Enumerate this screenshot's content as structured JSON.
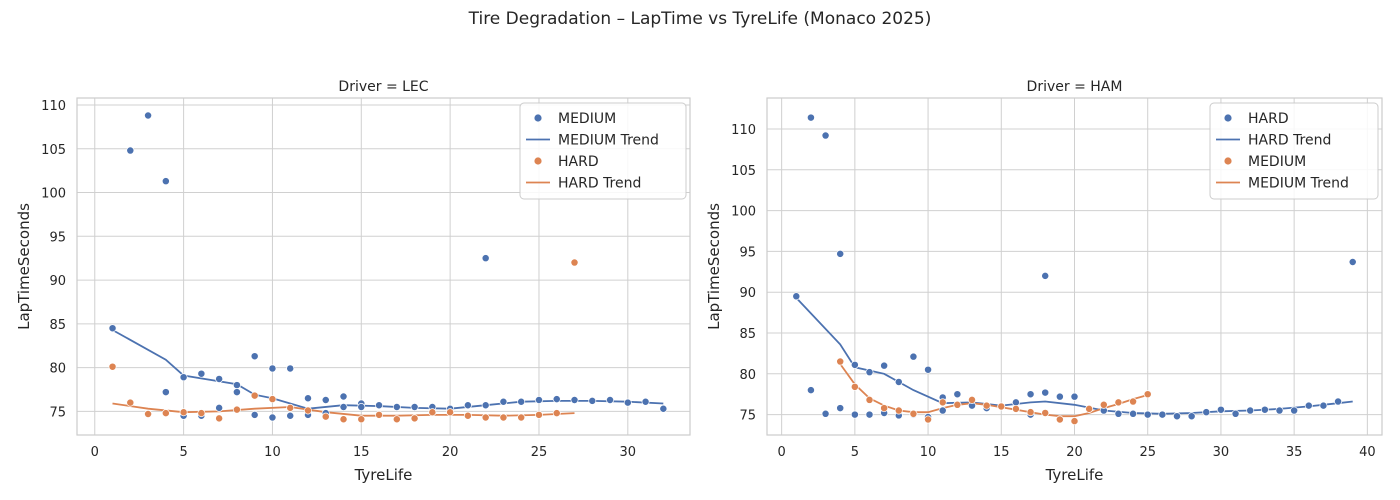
{
  "suptitle": "Tire Degradation – LapTime vs TyreLife (Monaco 2025)",
  "colors": {
    "HARD_LEC": "#dd8452",
    "MEDIUM_LEC": "#4c72b0",
    "HARD_HAM": "#4c72b0",
    "MEDIUM_HAM": "#dd8452",
    "grid": "#d0d0d0",
    "axis": "#cccccc"
  },
  "chart_data": [
    {
      "type": "scatter",
      "title": "Driver = LEC",
      "xlabel": "TyreLife",
      "ylabel": "LapTimeSeconds",
      "xlim": [
        -1,
        33.5
      ],
      "ylim": [
        72.3,
        110.8
      ],
      "xticks": [
        0,
        5,
        10,
        15,
        20,
        25,
        30
      ],
      "yticks": [
        75,
        80,
        85,
        90,
        95,
        100,
        105,
        110
      ],
      "grid": true,
      "legend_position": "top-right",
      "legend": [
        "MEDIUM",
        "MEDIUM Trend",
        "HARD",
        "HARD Trend"
      ],
      "series": [
        {
          "name": "MEDIUM",
          "kind": "points",
          "color": "#4c72b0",
          "points": [
            [
              1,
              84.5
            ],
            [
              2,
              104.8
            ],
            [
              3,
              108.8
            ],
            [
              4,
              101.3
            ],
            [
              4,
              77.2
            ],
            [
              5,
              78.9
            ],
            [
              5,
              74.5
            ],
            [
              6,
              79.3
            ],
            [
              6,
              74.5
            ],
            [
              7,
              78.7
            ],
            [
              7,
              75.4
            ],
            [
              8,
              78.0
            ],
            [
              8,
              77.2
            ],
            [
              9,
              81.3
            ],
            [
              9,
              74.6
            ],
            [
              10,
              79.9
            ],
            [
              10,
              74.3
            ],
            [
              11,
              79.9
            ],
            [
              11,
              74.5
            ],
            [
              12,
              76.5
            ],
            [
              12,
              74.6
            ],
            [
              13,
              76.3
            ],
            [
              13,
              74.8
            ],
            [
              14,
              76.7
            ],
            [
              14,
              75.5
            ],
            [
              15,
              75.9
            ],
            [
              15,
              75.5
            ],
            [
              16,
              75.7
            ],
            [
              17,
              75.5
            ],
            [
              18,
              75.5
            ],
            [
              19,
              75.5
            ],
            [
              20,
              75.3
            ],
            [
              21,
              75.7
            ],
            [
              22,
              92.5
            ],
            [
              22,
              75.7
            ],
            [
              23,
              76.1
            ],
            [
              24,
              76.1
            ],
            [
              25,
              76.3
            ],
            [
              26,
              76.4
            ],
            [
              27,
              76.3
            ],
            [
              28,
              76.2
            ],
            [
              29,
              76.3
            ],
            [
              30,
              76.0
            ],
            [
              31,
              76.1
            ],
            [
              32,
              75.3
            ]
          ]
        },
        {
          "name": "MEDIUM Trend",
          "kind": "line",
          "color": "#4c72b0",
          "points": [
            [
              1,
              84.3
            ],
            [
              4,
              80.9
            ],
            [
              5,
              79.1
            ],
            [
              8,
              78.1
            ],
            [
              9,
              76.9
            ],
            [
              10,
              76.5
            ],
            [
              12,
              75.3
            ],
            [
              14,
              75.7
            ],
            [
              16,
              75.6
            ],
            [
              18,
              75.4
            ],
            [
              20,
              75.3
            ],
            [
              22,
              75.7
            ],
            [
              24,
              76.1
            ],
            [
              26,
              76.2
            ],
            [
              28,
              76.2
            ],
            [
              30,
              76.1
            ],
            [
              32,
              75.9
            ]
          ]
        },
        {
          "name": "HARD",
          "kind": "points",
          "color": "#dd8452",
          "points": [
            [
              1,
              80.1
            ],
            [
              2,
              76.0
            ],
            [
              3,
              74.7
            ],
            [
              4,
              74.8
            ],
            [
              5,
              74.9
            ],
            [
              6,
              74.8
            ],
            [
              7,
              74.2
            ],
            [
              8,
              75.2
            ],
            [
              9,
              76.8
            ],
            [
              10,
              76.4
            ],
            [
              11,
              75.4
            ],
            [
              12,
              75.1
            ],
            [
              13,
              74.4
            ],
            [
              14,
              74.1
            ],
            [
              15,
              74.1
            ],
            [
              16,
              74.6
            ],
            [
              17,
              74.1
            ],
            [
              18,
              74.2
            ],
            [
              19,
              74.9
            ],
            [
              20,
              74.9
            ],
            [
              21,
              74.5
            ],
            [
              22,
              74.3
            ],
            [
              23,
              74.3
            ],
            [
              24,
              74.3
            ],
            [
              25,
              74.6
            ],
            [
              26,
              74.8
            ],
            [
              27,
              92.0
            ]
          ]
        },
        {
          "name": "HARD Trend",
          "kind": "line",
          "color": "#dd8452",
          "points": [
            [
              1,
              75.9
            ],
            [
              3,
              75.3
            ],
            [
              5,
              74.9
            ],
            [
              7,
              75.0
            ],
            [
              9,
              75.3
            ],
            [
              11,
              75.5
            ],
            [
              13,
              74.9
            ],
            [
              15,
              74.5
            ],
            [
              17,
              74.5
            ],
            [
              19,
              74.6
            ],
            [
              21,
              74.6
            ],
            [
              23,
              74.5
            ],
            [
              25,
              74.6
            ],
            [
              27,
              74.8
            ]
          ]
        }
      ]
    },
    {
      "type": "scatter",
      "title": "Driver = HAM",
      "xlabel": "TyreLife",
      "ylabel": "LapTimeSeconds",
      "xlim": [
        -1,
        41
      ],
      "ylim": [
        72.5,
        113.8
      ],
      "xticks": [
        0,
        5,
        10,
        15,
        20,
        25,
        30,
        35,
        40
      ],
      "yticks": [
        75,
        80,
        85,
        90,
        95,
        100,
        105,
        110
      ],
      "grid": true,
      "legend_position": "top-right",
      "legend": [
        "HARD",
        "HARD Trend",
        "MEDIUM",
        "MEDIUM Trend"
      ],
      "series": [
        {
          "name": "HARD",
          "kind": "points",
          "color": "#4c72b0",
          "points": [
            [
              1,
              89.5
            ],
            [
              2,
              111.4
            ],
            [
              2,
              78.0
            ],
            [
              3,
              109.2
            ],
            [
              3,
              75.1
            ],
            [
              4,
              94.7
            ],
            [
              4,
              75.8
            ],
            [
              5,
              81.1
            ],
            [
              5,
              75.0
            ],
            [
              6,
              80.2
            ],
            [
              6,
              75.0
            ],
            [
              7,
              81.0
            ],
            [
              7,
              75.2
            ],
            [
              8,
              79.0
            ],
            [
              8,
              74.9
            ],
            [
              9,
              82.1
            ],
            [
              9,
              75.0
            ],
            [
              10,
              80.5
            ],
            [
              10,
              74.7
            ],
            [
              11,
              77.1
            ],
            [
              11,
              75.5
            ],
            [
              12,
              77.5
            ],
            [
              12,
              76.2
            ],
            [
              13,
              76.1
            ],
            [
              14,
              75.8
            ],
            [
              15,
              76.0
            ],
            [
              16,
              76.5
            ],
            [
              17,
              77.5
            ],
            [
              17,
              75.0
            ],
            [
              18,
              92.0
            ],
            [
              18,
              77.7
            ],
            [
              19,
              77.2
            ],
            [
              20,
              77.2
            ],
            [
              21,
              75.7
            ],
            [
              22,
              75.5
            ],
            [
              23,
              75.1
            ],
            [
              24,
              75.1
            ],
            [
              25,
              75.0
            ],
            [
              26,
              75.0
            ],
            [
              27,
              74.8
            ],
            [
              28,
              74.8
            ],
            [
              29,
              75.3
            ],
            [
              30,
              75.6
            ],
            [
              31,
              75.1
            ],
            [
              32,
              75.5
            ],
            [
              33,
              75.6
            ],
            [
              34,
              75.5
            ],
            [
              35,
              75.5
            ],
            [
              36,
              76.1
            ],
            [
              37,
              76.1
            ],
            [
              38,
              76.6
            ],
            [
              39,
              93.7
            ]
          ]
        },
        {
          "name": "HARD Trend",
          "kind": "line",
          "color": "#4c72b0",
          "points": [
            [
              1,
              89.3
            ],
            [
              4,
              83.6
            ],
            [
              5,
              80.8
            ],
            [
              7,
              80.0
            ],
            [
              9,
              78.0
            ],
            [
              11,
              76.4
            ],
            [
              13,
              76.5
            ],
            [
              15,
              76.1
            ],
            [
              17,
              76.5
            ],
            [
              18,
              76.6
            ],
            [
              20,
              76.2
            ],
            [
              22,
              75.5
            ],
            [
              24,
              75.2
            ],
            [
              26,
              75.1
            ],
            [
              28,
              75.2
            ],
            [
              30,
              75.4
            ],
            [
              32,
              75.5
            ],
            [
              34,
              75.7
            ],
            [
              36,
              76.0
            ],
            [
              38,
              76.4
            ],
            [
              39,
              76.6
            ]
          ]
        },
        {
          "name": "MEDIUM",
          "kind": "points",
          "color": "#dd8452",
          "points": [
            [
              4,
              81.5
            ],
            [
              5,
              78.4
            ],
            [
              6,
              76.8
            ],
            [
              7,
              75.8
            ],
            [
              8,
              75.5
            ],
            [
              9,
              75.1
            ],
            [
              10,
              74.4
            ],
            [
              11,
              76.5
            ],
            [
              12,
              76.2
            ],
            [
              13,
              76.8
            ],
            [
              14,
              76.1
            ],
            [
              15,
              76.0
            ],
            [
              16,
              75.7
            ],
            [
              17,
              75.3
            ],
            [
              18,
              75.2
            ],
            [
              19,
              74.4
            ],
            [
              20,
              74.2
            ],
            [
              21,
              75.7
            ],
            [
              22,
              76.2
            ],
            [
              23,
              76.5
            ],
            [
              24,
              76.6
            ],
            [
              25,
              77.5
            ]
          ]
        },
        {
          "name": "MEDIUM Trend",
          "kind": "line",
          "color": "#dd8452",
          "points": [
            [
              4,
              81.2
            ],
            [
              5,
              78.7
            ],
            [
              6,
              77.0
            ],
            [
              7,
              76.1
            ],
            [
              8,
              75.5
            ],
            [
              9,
              75.3
            ],
            [
              10,
              75.3
            ],
            [
              11,
              75.8
            ],
            [
              12,
              76.2
            ],
            [
              13,
              76.4
            ],
            [
              14,
              76.2
            ],
            [
              15,
              75.9
            ],
            [
              16,
              75.6
            ],
            [
              17,
              75.3
            ],
            [
              18,
              75.0
            ],
            [
              19,
              74.8
            ],
            [
              20,
              74.8
            ],
            [
              21,
              75.2
            ],
            [
              22,
              75.8
            ],
            [
              23,
              76.3
            ],
            [
              24,
              76.9
            ],
            [
              25,
              77.4
            ]
          ]
        }
      ]
    }
  ]
}
